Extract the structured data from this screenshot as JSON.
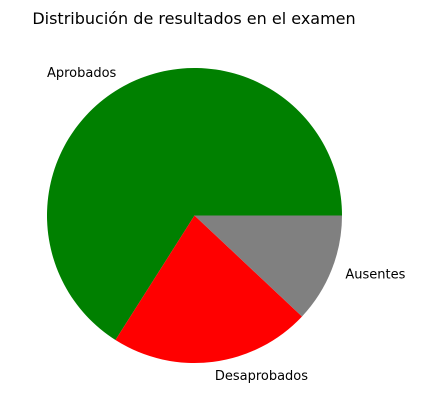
{
  "chart_data": {
    "type": "pie",
    "title": "Distribución de resultados en el examen",
    "categories": [
      "Aprobados",
      "Desaprobados",
      "Ausentes"
    ],
    "values": [
      66,
      22,
      12
    ],
    "colors": [
      "#008000",
      "#ff0000",
      "#808080"
    ],
    "start_angle_deg": 0,
    "direction": "counterclockwise"
  }
}
